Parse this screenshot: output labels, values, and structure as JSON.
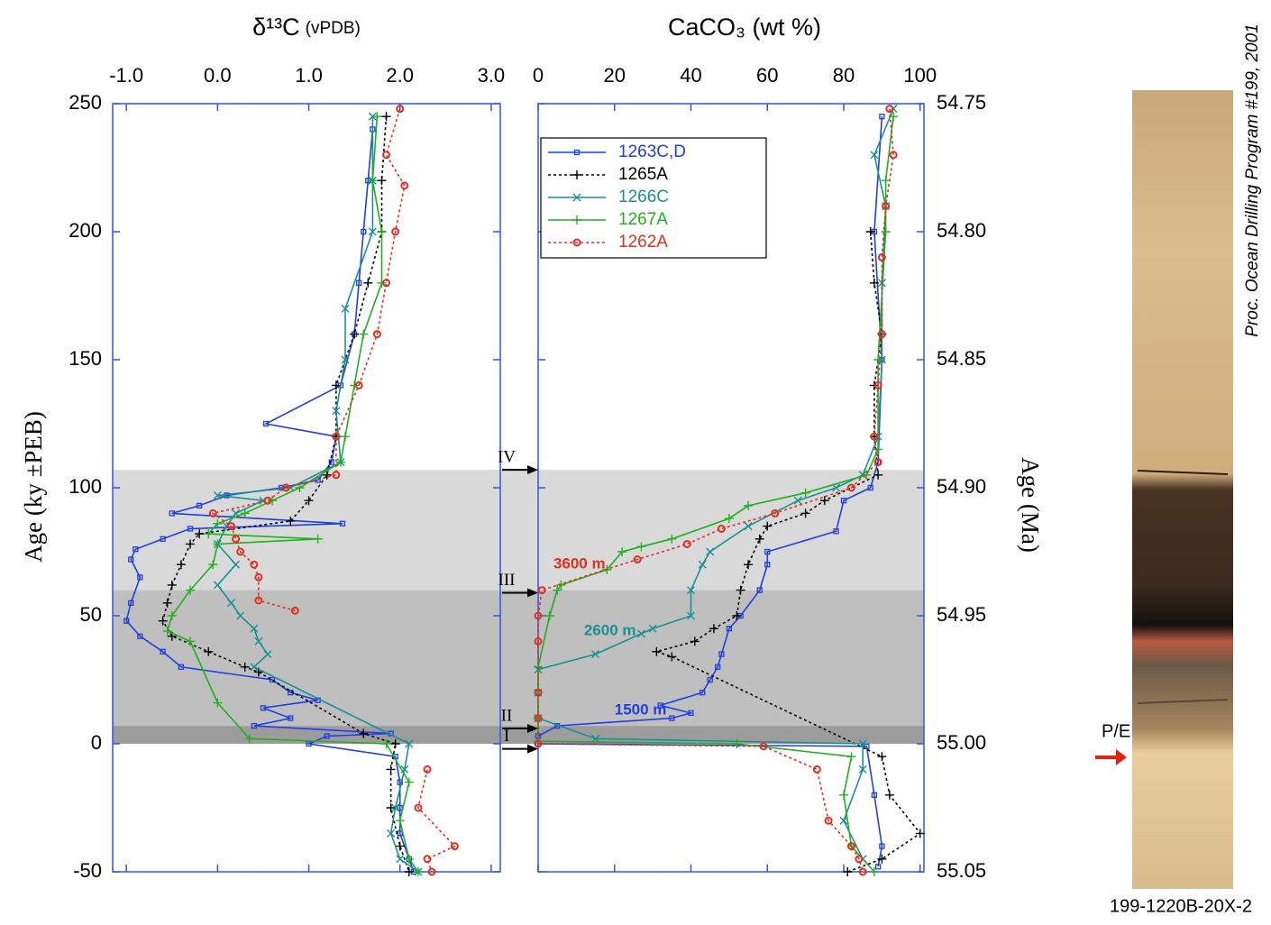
{
  "chart_data": [
    {
      "type": "line",
      "x_label": "δ¹³C",
      "x_label_unit": "(vPDB)",
      "y_label": "Age (ky ±PEB)",
      "xlim": [
        -1.15,
        3.1
      ],
      "xticks": [
        {
          "value": -1,
          "label": "-1.0"
        },
        {
          "value": 0,
          "label": "0.0"
        },
        {
          "value": 1,
          "label": "1.0"
        },
        {
          "value": 2,
          "label": "2.0"
        },
        {
          "value": 3,
          "label": "3.0"
        }
      ],
      "ylim": [
        -50,
        250
      ],
      "yticks": [
        -50,
        0,
        50,
        100,
        150,
        200,
        250
      ],
      "series": [
        {
          "color": "#2040e0",
          "marker": "square",
          "dash": false,
          "age": [
            240,
            220,
            200,
            180,
            160,
            140,
            125,
            120,
            110,
            103,
            100,
            97,
            93,
            90,
            86,
            84,
            80,
            76,
            72,
            65,
            55,
            48,
            42,
            36,
            30,
            25,
            20,
            17,
            14,
            10,
            7,
            4,
            3,
            0,
            -5,
            -15,
            -25,
            -35,
            -45,
            -50
          ],
          "values": [
            1.7,
            1.65,
            1.6,
            1.55,
            1.5,
            1.35,
            0.53,
            1.3,
            1.25,
            1.1,
            0.7,
            0.1,
            -0.2,
            -0.5,
            1.37,
            -0.3,
            -0.6,
            -0.9,
            -0.95,
            -0.85,
            -0.95,
            -1.0,
            -0.85,
            -0.6,
            -0.4,
            0.6,
            0.8,
            1.1,
            0.5,
            0.8,
            0.4,
            1.9,
            1.2,
            1.0,
            1.95,
            2.0,
            2.0,
            2.0,
            2.1,
            2.15
          ]
        },
        {
          "color": "#000000",
          "marker": "plus",
          "dash": true,
          "age": [
            245,
            220,
            200,
            180,
            160,
            140,
            120,
            105,
            95,
            87,
            82,
            78,
            70,
            62,
            55,
            48,
            42,
            36,
            30,
            28,
            4,
            0,
            -10,
            -25,
            -40,
            -50
          ],
          "values": [
            1.85,
            1.8,
            1.8,
            1.65,
            1.5,
            1.3,
            1.3,
            1.2,
            1.0,
            0.8,
            -0.2,
            -0.3,
            -0.4,
            -0.5,
            -0.55,
            -0.6,
            -0.5,
            -0.1,
            0.3,
            0.45,
            1.6,
            1.95,
            1.9,
            1.9,
            2.0,
            2.1
          ]
        },
        {
          "color": "#1a9090",
          "marker": "x",
          "dash": false,
          "age": [
            245,
            220,
            200,
            170,
            150,
            130,
            110,
            100,
            97,
            95,
            90,
            85,
            78,
            70,
            62,
            55,
            50,
            45,
            40,
            35,
            30,
            0,
            -10,
            -25,
            -35,
            -45,
            -50
          ],
          "values": [
            1.7,
            1.7,
            1.7,
            1.4,
            1.4,
            1.3,
            1.35,
            0.8,
            0.0,
            0.5,
            0.2,
            0.1,
            0.0,
            0.2,
            0.0,
            0.15,
            0.25,
            0.4,
            0.45,
            0.55,
            0.4,
            2.1,
            2.05,
            1.95,
            1.9,
            2.0,
            2.2
          ]
        },
        {
          "color": "#20b020",
          "marker": "plus",
          "dash": false,
          "age": [
            245,
            220,
            200,
            180,
            160,
            140,
            120,
            110,
            100,
            95,
            90,
            86,
            82,
            80,
            78,
            70,
            60,
            50,
            44,
            40,
            16,
            2,
            0,
            -15,
            -30,
            -45,
            -50
          ],
          "values": [
            1.75,
            1.7,
            1.8,
            1.8,
            1.6,
            1.5,
            1.4,
            1.35,
            0.9,
            0.6,
            0.3,
            0.0,
            -0.1,
            1.1,
            0.0,
            -0.05,
            -0.3,
            -0.5,
            -0.55,
            -0.3,
            0.0,
            0.35,
            1.85,
            2.1,
            2.0,
            2.1,
            2.2
          ]
        },
        {
          "color": "#e03020",
          "marker": "circle",
          "dash": true,
          "age": [
            248,
            230,
            218,
            200,
            180,
            160,
            140,
            120,
            105,
            100,
            95,
            90,
            85,
            80,
            75,
            70,
            65,
            56,
            52,
            null,
            -10,
            -25,
            -40,
            -45,
            -50
          ],
          "values": [
            2.0,
            1.85,
            2.05,
            1.95,
            1.85,
            1.75,
            1.55,
            1.3,
            1.3,
            0.75,
            0.55,
            -0.05,
            0.15,
            0.2,
            0.25,
            0.4,
            0.45,
            0.45,
            0.85,
            null,
            2.3,
            2.2,
            2.6,
            2.3,
            2.35
          ]
        }
      ]
    },
    {
      "type": "line",
      "x_label": "CaCO₃ (wt %)",
      "y2_label": "Age (Ma)",
      "xlim": [
        0,
        101
      ],
      "xticks": [
        0,
        20,
        40,
        60,
        80,
        100
      ],
      "ylim": [
        -50,
        250
      ],
      "y2lim": [
        55.05,
        54.75
      ],
      "y2ticks": [
        54.75,
        {
          "value": 54.8,
          "label": "54.80"
        },
        54.85,
        {
          "value": 54.9,
          "label": "54.90"
        },
        54.95,
        {
          "value": 55,
          "label": "55.00"
        },
        55.05
      ],
      "annotations": [
        "3600 m",
        "2600 m",
        "1500 m"
      ],
      "series": [
        {
          "name": "1263C,D",
          "color": "#2040e0",
          "marker": "square",
          "dash": false,
          "age": [
            245,
            200,
            150,
            110,
            100,
            95,
            83,
            75,
            70,
            60,
            50,
            45,
            35,
            30,
            25,
            20,
            15,
            12,
            10,
            7,
            3,
            0,
            -1,
            -20,
            -40,
            -48
          ],
          "values": [
            90,
            88,
            90,
            89,
            87,
            80,
            78,
            60,
            60,
            58,
            53,
            50,
            48,
            47,
            45,
            43,
            32,
            40,
            35,
            5,
            0,
            0,
            86,
            88,
            90,
            89
          ]
        },
        {
          "name": "1265A",
          "color": "#000000",
          "marker": "plus",
          "dash": true,
          "age": [
            200,
            180,
            160,
            140,
            120,
            105,
            95,
            90,
            85,
            80,
            70,
            60,
            50,
            45,
            40,
            36,
            34,
            -5,
            -20,
            -35,
            -45,
            -50
          ],
          "values": [
            87,
            88,
            90,
            88,
            88,
            89,
            75,
            70,
            60,
            58,
            55,
            53,
            52,
            46,
            41,
            31,
            35,
            90,
            92,
            100,
            90,
            81
          ]
        },
        {
          "name": "1266C",
          "color": "#1a9090",
          "marker": "x",
          "dash": false,
          "age": [
            248,
            230,
            210,
            180,
            150,
            120,
            105,
            100,
            95,
            85,
            75,
            70,
            60,
            50,
            45,
            43,
            35,
            29,
            20,
            10,
            2,
            0,
            -10,
            -30,
            -45
          ],
          "values": [
            93,
            88,
            91,
            90,
            90,
            89,
            85,
            78,
            68,
            55,
            45,
            43,
            40,
            40,
            30,
            27,
            15,
            0,
            0,
            0,
            15,
            85,
            85,
            80,
            85
          ]
        },
        {
          "name": "1267A",
          "color": "#20b020",
          "marker": "plus",
          "dash": false,
          "age": [
            245,
            220,
            200,
            150,
            115,
            105,
            98,
            93,
            88,
            80,
            77,
            75,
            68,
            62,
            60,
            50,
            30,
            10,
            1,
            0,
            -5,
            -20,
            -40,
            -50
          ],
          "values": [
            93,
            91,
            91,
            89,
            89,
            86,
            70,
            55,
            50,
            35,
            27,
            22,
            18,
            6,
            5,
            3,
            0,
            0,
            0,
            52,
            82,
            80,
            82,
            88
          ]
        },
        {
          "name": "1262A",
          "color": "#e03020",
          "marker": "circle",
          "dash": true,
          "age": [
            248,
            230,
            210,
            190,
            160,
            140,
            120,
            110,
            100,
            90,
            84,
            78,
            72,
            60,
            50,
            40,
            20,
            10,
            0,
            -1,
            -10,
            -30,
            -40,
            -45,
            -50
          ],
          "values": [
            92,
            93,
            91,
            90,
            90,
            89,
            88,
            89,
            82,
            62,
            48,
            39,
            26,
            1,
            0,
            0,
            0,
            0,
            0,
            59,
            73,
            76,
            82,
            84,
            85
          ]
        }
      ]
    }
  ],
  "shading": [
    {
      "from": 60,
      "to": 107,
      "color": "#d9d9d9"
    },
    {
      "from": 7,
      "to": 60,
      "color": "#bfbfbf"
    },
    {
      "from": 0,
      "to": 7,
      "color": "#9c9c9c"
    }
  ],
  "events": [
    {
      "label": "IV",
      "age": 107
    },
    {
      "label": "III",
      "age": 59
    },
    {
      "label": "II",
      "age": 6
    },
    {
      "label": "I",
      "age": -2
    }
  ],
  "photo": {
    "caption": "199-1220B-20X-2",
    "boundary": "P/E",
    "credit": "Proc. Ocean Drilling Program #199, 2001"
  }
}
